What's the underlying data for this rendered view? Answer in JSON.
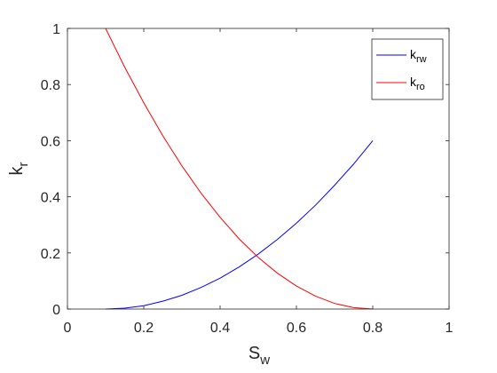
{
  "chart_data": {
    "type": "line",
    "xlabel": {
      "main": "S",
      "sub": "w"
    },
    "ylabel": {
      "main": "k",
      "sub": "r"
    },
    "xlim": [
      0,
      1
    ],
    "ylim": [
      0,
      1
    ],
    "x_ticks": [
      0,
      0.2,
      0.4,
      0.6,
      0.8,
      1
    ],
    "x_tick_labels": [
      "0",
      "0.2",
      "0.4",
      "0.6",
      "0.8",
      "1"
    ],
    "y_ticks": [
      0,
      0.2,
      0.4,
      0.6,
      0.8,
      1
    ],
    "y_tick_labels": [
      "0",
      "0.2",
      "0.4",
      "0.6",
      "0.8",
      "1"
    ],
    "grid": false,
    "legend_position": "top-right",
    "series": [
      {
        "name": {
          "main": "k",
          "sub": "rw"
        },
        "color": "#0000ff",
        "x": [
          0.1,
          0.15,
          0.2,
          0.25,
          0.3,
          0.35,
          0.4,
          0.45,
          0.5,
          0.55,
          0.6,
          0.65,
          0.7,
          0.75,
          0.8
        ],
        "y": [
          0.0,
          0.003,
          0.012,
          0.028,
          0.049,
          0.077,
          0.11,
          0.15,
          0.196,
          0.248,
          0.306,
          0.37,
          0.441,
          0.517,
          0.6
        ]
      },
      {
        "name": {
          "main": "k",
          "sub": "ro"
        },
        "color": "#ff0000",
        "x": [
          0.1,
          0.15,
          0.2,
          0.25,
          0.3,
          0.35,
          0.4,
          0.45,
          0.5,
          0.55,
          0.6,
          0.65,
          0.7,
          0.75,
          0.8
        ],
        "y": [
          1.0,
          0.862,
          0.735,
          0.617,
          0.51,
          0.413,
          0.327,
          0.25,
          0.184,
          0.128,
          0.082,
          0.046,
          0.02,
          0.005,
          0.0
        ]
      }
    ]
  }
}
